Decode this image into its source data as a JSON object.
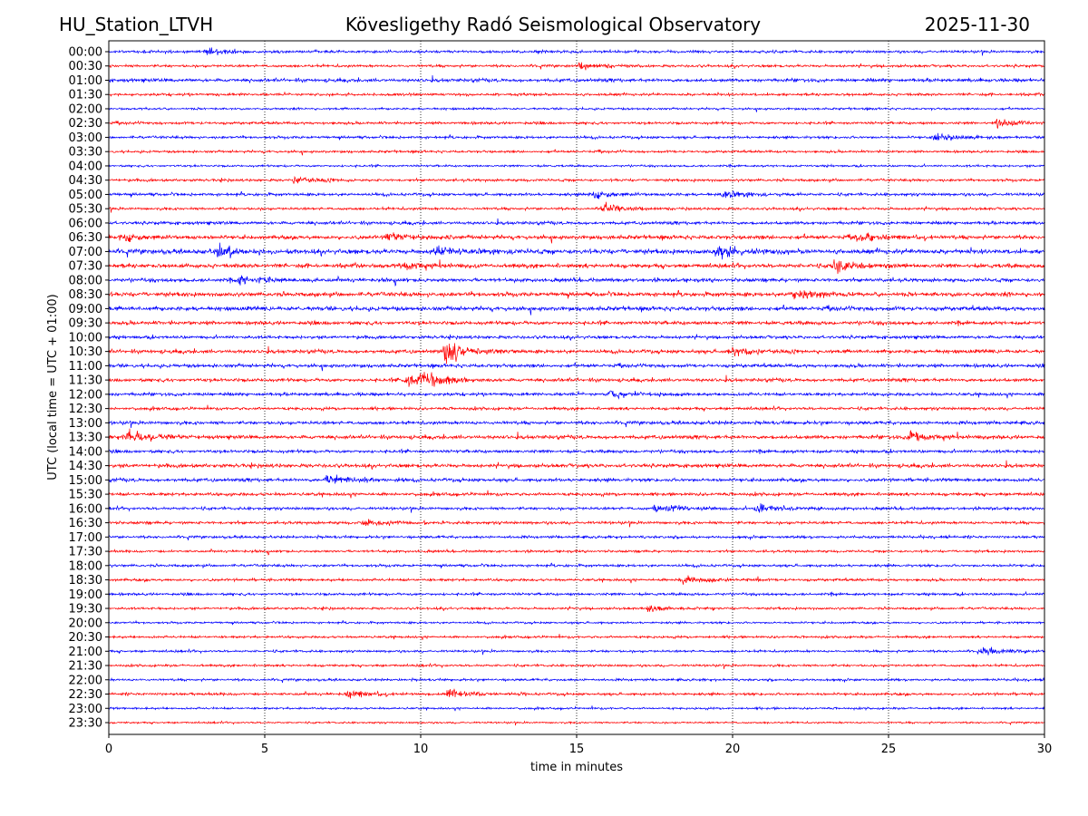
{
  "header": {
    "station": "HU_Station_LTVH",
    "title": "Kövesligethy Radó Seismological Observatory",
    "date": "2025-11-30"
  },
  "chart_data": {
    "type": "line",
    "title": "Kövesligethy Radó Seismological Observatory",
    "xlabel": "time in minutes",
    "ylabel": "UTC (local time = UTC + 01:00)",
    "xlim": [
      0,
      30
    ],
    "xticks": [
      "0",
      "5",
      "10",
      "15",
      "20",
      "25",
      "30"
    ],
    "xtick_values": [
      0,
      5,
      10,
      15,
      20,
      25,
      30
    ],
    "grid": "vertical dotted at x ticks",
    "colors": [
      "#0000ff",
      "#ff0000"
    ],
    "rows": [
      "00:00",
      "00:30",
      "01:00",
      "01:30",
      "02:00",
      "02:30",
      "03:00",
      "03:30",
      "04:00",
      "04:30",
      "05:00",
      "05:30",
      "06:00",
      "06:30",
      "07:00",
      "07:30",
      "08:00",
      "08:30",
      "09:00",
      "09:30",
      "10:00",
      "10:30",
      "11:00",
      "11:30",
      "12:00",
      "12:30",
      "13:00",
      "13:30",
      "14:00",
      "14:30",
      "15:00",
      "15:30",
      "16:00",
      "16:30",
      "17:00",
      "17:30",
      "18:00",
      "18:30",
      "19:00",
      "19:30",
      "20:00",
      "20:30",
      "21:00",
      "21:30",
      "22:00",
      "22:30",
      "23:00",
      "23:30"
    ],
    "noise_level": [
      1,
      1,
      1.3,
      1,
      0.8,
      1,
      1,
      0.9,
      0.8,
      1,
      1.1,
      1,
      1.2,
      1.5,
      1.8,
      1.6,
      1.4,
      1.6,
      1.6,
      1.4,
      1.2,
      1.4,
      1.3,
      1.3,
      1.2,
      1.1,
      1.3,
      1.4,
      1.2,
      1.4,
      1.3,
      1.2,
      1.1,
      1.1,
      1,
      0.9,
      1,
      1,
      1,
      0.9,
      0.8,
      0.9,
      0.9,
      0.9,
      0.9,
      1,
      0.8,
      0.7
    ],
    "events": [
      {
        "row": "00:00",
        "minute": 3.2,
        "amp": 2
      },
      {
        "row": "00:30",
        "minute": 15.1,
        "amp": 2.5
      },
      {
        "row": "02:30",
        "minute": 28.5,
        "amp": 2.5
      },
      {
        "row": "03:00",
        "minute": 26.5,
        "amp": 2.5
      },
      {
        "row": "04:30",
        "minute": 6,
        "amp": 2.5
      },
      {
        "row": "05:00",
        "minute": 15.5,
        "amp": 2.5
      },
      {
        "row": "05:00",
        "minute": 19.7,
        "amp": 2.5
      },
      {
        "row": "05:30",
        "minute": 15.9,
        "amp": 3
      },
      {
        "row": "06:30",
        "minute": 0.4,
        "amp": 2.5
      },
      {
        "row": "06:30",
        "minute": 9,
        "amp": 2.5
      },
      {
        "row": "06:30",
        "minute": 24,
        "amp": 2.5
      },
      {
        "row": "07:00",
        "minute": 3.5,
        "amp": 3
      },
      {
        "row": "07:00",
        "minute": 10.5,
        "amp": 3
      },
      {
        "row": "07:00",
        "minute": 19.5,
        "amp": 4
      },
      {
        "row": "07:30",
        "minute": 9.5,
        "amp": 2.5
      },
      {
        "row": "07:30",
        "minute": 23.3,
        "amp": 4
      },
      {
        "row": "08:00",
        "minute": 4.2,
        "amp": 4
      },
      {
        "row": "08:30",
        "minute": 22,
        "amp": 3
      },
      {
        "row": "10:30",
        "minute": 10.8,
        "amp": 7
      },
      {
        "row": "10:30",
        "minute": 20,
        "amp": 2.5
      },
      {
        "row": "11:30",
        "minute": 9.5,
        "amp": 4
      },
      {
        "row": "11:30",
        "minute": 10,
        "amp": 5
      },
      {
        "row": "12:00",
        "minute": 16,
        "amp": 3
      },
      {
        "row": "13:30",
        "minute": 0.6,
        "amp": 4
      },
      {
        "row": "13:30",
        "minute": 25.7,
        "amp": 3
      },
      {
        "row": "15:00",
        "minute": 7,
        "amp": 4
      },
      {
        "row": "16:00",
        "minute": 17.5,
        "amp": 3
      },
      {
        "row": "16:00",
        "minute": 20.8,
        "amp": 3.5
      },
      {
        "row": "16:30",
        "minute": 8.2,
        "amp": 2.5
      },
      {
        "row": "18:30",
        "minute": 18.4,
        "amp": 2.5
      },
      {
        "row": "19:30",
        "minute": 17.2,
        "amp": 2.5
      },
      {
        "row": "21:00",
        "minute": 28,
        "amp": 2.5
      },
      {
        "row": "22:30",
        "minute": 7.7,
        "amp": 2.5
      },
      {
        "row": "22:30",
        "minute": 10.9,
        "amp": 3
      }
    ]
  }
}
